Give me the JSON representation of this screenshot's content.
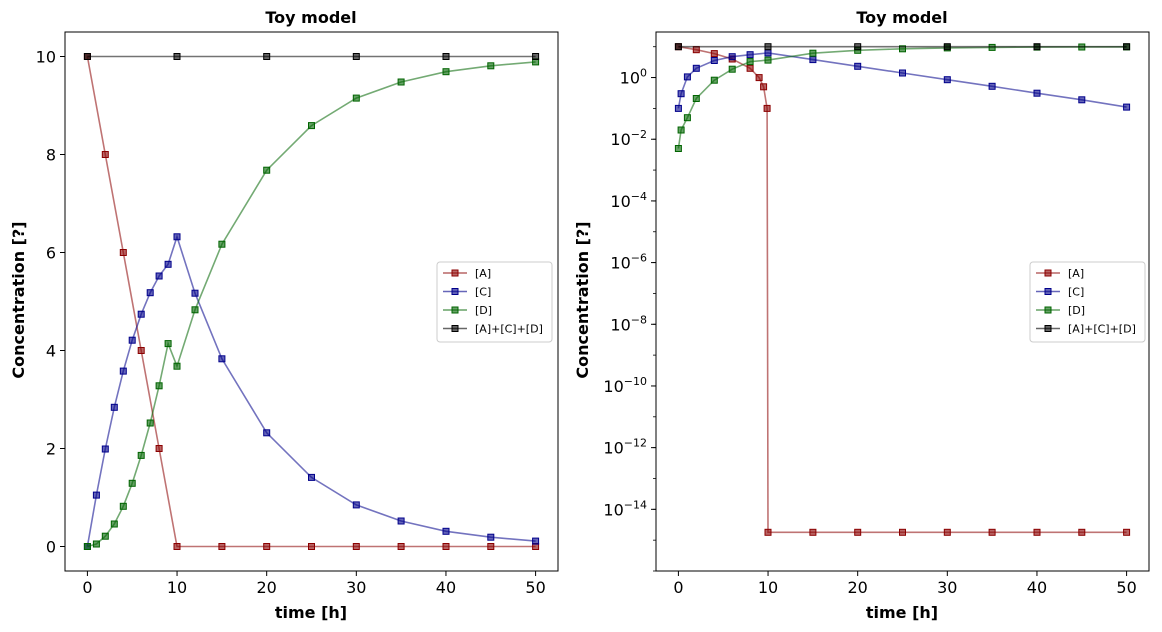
{
  "chart_data": [
    {
      "type": "line",
      "title": "Toy model",
      "xlabel": "time [h]",
      "ylabel": "Concentration [?]",
      "yscale": "linear",
      "xlim": [
        -2.5,
        52.5
      ],
      "ylim": [
        -0.5,
        10.5
      ],
      "xticks": [
        0,
        10,
        20,
        30,
        40,
        50
      ],
      "yticks": [
        0,
        2,
        4,
        6,
        8,
        10
      ],
      "legend_position": "center-right",
      "marker": "square",
      "series": [
        {
          "name": "[A]",
          "color": "#8b0000",
          "x": [
            0,
            2,
            4,
            6,
            8,
            10,
            15,
            20,
            25,
            30,
            35,
            40,
            45,
            50
          ],
          "y": [
            10,
            8,
            6,
            4,
            2,
            0,
            0,
            0,
            0,
            0,
            0,
            0,
            0,
            0
          ]
        },
        {
          "name": "[C]",
          "color": "#00008b",
          "x": [
            0,
            1,
            2,
            3,
            4,
            5,
            6,
            7,
            8,
            9,
            10,
            12,
            15,
            20,
            25,
            30,
            35,
            40,
            45,
            50
          ],
          "y": [
            0,
            1.05,
            1.99,
            2.84,
            3.58,
            4.21,
            4.74,
            5.18,
            5.52,
            5.76,
            6.32,
            5.17,
            3.83,
            2.32,
            1.41,
            0.85,
            0.52,
            0.31,
            0.19,
            0.11
          ]
        },
        {
          "name": "[D]",
          "color": "#006400",
          "x": [
            0,
            1,
            2,
            3,
            4,
            5,
            6,
            7,
            8,
            9,
            10,
            12,
            15,
            20,
            25,
            30,
            35,
            40,
            45,
            50
          ],
          "y": [
            0,
            0.05,
            0.21,
            0.46,
            0.82,
            1.29,
            1.86,
            2.52,
            3.28,
            4.14,
            3.68,
            4.83,
            6.17,
            7.68,
            8.59,
            9.15,
            9.48,
            9.69,
            9.81,
            9.89
          ]
        },
        {
          "name": "[A]+[C]+[D]",
          "color": "#000000",
          "x": [
            0,
            10,
            20,
            30,
            40,
            50
          ],
          "y": [
            10,
            10,
            10,
            10,
            10,
            10
          ]
        }
      ]
    },
    {
      "type": "line",
      "title": "Toy model",
      "xlabel": "time [h]",
      "ylabel": "Concentration [?]",
      "yscale": "log",
      "xlim": [
        -2.5,
        52.5
      ],
      "ylim": [
        1e-16,
        30
      ],
      "xticks": [
        0,
        10,
        20,
        30,
        40,
        50
      ],
      "yticks": [
        "10^0",
        "10^-2",
        "10^-4",
        "10^-6",
        "10^-8",
        "10^-10",
        "10^-12",
        "10^-14"
      ],
      "legend_position": "center-right",
      "marker": "square",
      "series": [
        {
          "name": "[A]",
          "color": "#8b0000",
          "x": [
            0,
            2,
            4,
            6,
            8,
            9,
            9.5,
            9.9,
            10,
            15,
            20,
            25,
            30,
            35,
            40,
            45,
            50
          ],
          "y": [
            10,
            8,
            6,
            4,
            2,
            1,
            0.5,
            0.1,
            1.8e-15,
            1.8e-15,
            1.8e-15,
            1.8e-15,
            1.8e-15,
            1.8e-15,
            1.8e-15,
            1.8e-15,
            1.8e-15
          ]
        },
        {
          "name": "[C]",
          "color": "#00008b",
          "x": [
            0,
            0.3,
            1,
            2,
            4,
            6,
            8,
            10,
            15,
            20,
            25,
            30,
            35,
            40,
            45,
            50
          ],
          "y": [
            0.1,
            0.3,
            1.05,
            1.99,
            3.58,
            4.74,
            5.52,
            6.32,
            3.83,
            2.32,
            1.41,
            0.85,
            0.52,
            0.31,
            0.19,
            0.11
          ]
        },
        {
          "name": "[D]",
          "color": "#006400",
          "x": [
            0,
            0.3,
            1,
            2,
            4,
            6,
            8,
            10,
            15,
            20,
            25,
            30,
            35,
            40,
            45,
            50
          ],
          "y": [
            0.005,
            0.02,
            0.05,
            0.21,
            0.82,
            1.86,
            3.28,
            3.68,
            6.17,
            7.68,
            8.59,
            9.15,
            9.48,
            9.69,
            9.81,
            9.89
          ]
        },
        {
          "name": "[A]+[C]+[D]",
          "color": "#000000",
          "x": [
            0,
            10,
            20,
            30,
            40,
            50
          ],
          "y": [
            10,
            10,
            10,
            10,
            10,
            10
          ]
        }
      ]
    }
  ]
}
